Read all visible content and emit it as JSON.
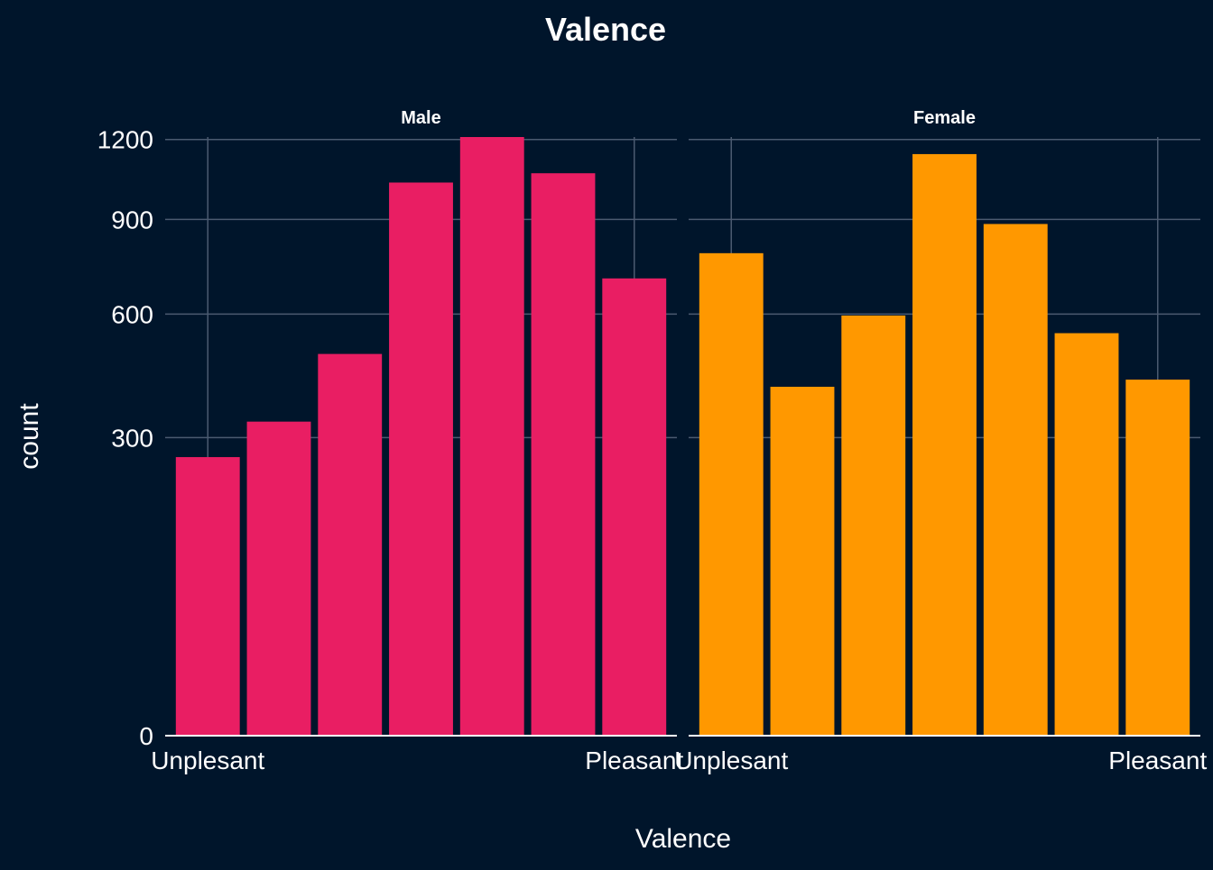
{
  "chart_data": {
    "type": "bar",
    "title": "Valence",
    "xlabel": "Valence",
    "ylabel": "count",
    "y_scale": "sqrt",
    "ylim": [
      0,
      1210
    ],
    "y_ticks": [
      0,
      300,
      600,
      900,
      1200
    ],
    "y_tick_labels": [
      "0",
      "300",
      "600",
      "900",
      "1200"
    ],
    "x_tick_labels": [
      "Unplesant",
      "Pleasant"
    ],
    "x_tick_positions": [
      1,
      7
    ],
    "categories": [
      1,
      2,
      3,
      4,
      5,
      6,
      7
    ],
    "grid": true,
    "legend": "none",
    "colors": {
      "background": "#00152b",
      "grid": "#4b5a70",
      "axis": "#ffffff",
      "text": "#ffffff"
    },
    "panels": [
      {
        "name": "Male",
        "color": "#e91e63",
        "values": [
          262,
          333,
          492,
          1033,
          1210,
          1068,
          706
        ]
      },
      {
        "name": "Female",
        "color": "#ff9800",
        "values": [
          786,
          411,
          596,
          1142,
          884,
          547,
          428
        ]
      }
    ]
  }
}
